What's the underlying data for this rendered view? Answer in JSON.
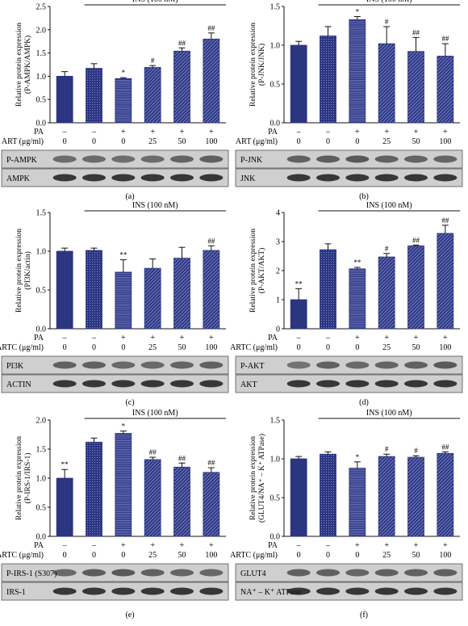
{
  "cond_labels": {
    "pa": "PA",
    "dash": "–",
    "plus": "+"
  },
  "bar_color": "#2b3580",
  "patterns": [
    "solid",
    "cross",
    "hstripe",
    "diag",
    "diag",
    "diag"
  ],
  "chart_data": [
    {
      "panel": "(a)",
      "type": "bar",
      "ylabel": "Relative protein expression\n(P-AMPK/AMPK)",
      "ylim": [
        0,
        2.5
      ],
      "yticks": [
        "0.0",
        "0.5",
        "1.0",
        "1.5",
        "2.0",
        "2.5"
      ],
      "ytick_vals": [
        0,
        0.5,
        1,
        1.5,
        2,
        2.5
      ],
      "ins_label": "INS (100 nM)",
      "ins_from": 1,
      "treatment_label": "ART (μg/ml)",
      "pa": [
        "–",
        "–",
        "+",
        "+",
        "+",
        "+"
      ],
      "doses": [
        "0",
        "0",
        "0",
        "25",
        "50",
        "100"
      ],
      "values": [
        1.0,
        1.17,
        0.95,
        1.19,
        1.54,
        1.8
      ],
      "errors": [
        0.1,
        0.1,
        0.02,
        0.04,
        0.07,
        0.13
      ],
      "sig": [
        "",
        "",
        "*",
        "#",
        "##",
        "##"
      ],
      "blots": [
        "P-AMPK",
        "AMPK"
      ]
    },
    {
      "panel": "(b)",
      "type": "bar",
      "ylabel": "Relative protein expression\n(P-JNK/JNK)",
      "ylim": [
        0,
        1.5
      ],
      "yticks": [
        "0.0",
        "0.5",
        "1.0",
        "1.5"
      ],
      "ytick_vals": [
        0,
        0.5,
        1,
        1.5
      ],
      "ins_label": "INS (100 nM)",
      "ins_from": 1,
      "treatment_label": "ART (μg/ml)",
      "pa": [
        "–",
        "–",
        "+",
        "+",
        "+",
        "+"
      ],
      "doses": [
        "0",
        "0",
        "0",
        "25",
        "50",
        "100"
      ],
      "values": [
        1.0,
        1.12,
        1.33,
        1.02,
        0.92,
        0.86
      ],
      "errors": [
        0.05,
        0.12,
        0.04,
        0.22,
        0.18,
        0.16
      ],
      "sig": [
        "",
        "",
        "*",
        "#",
        "##",
        "##"
      ],
      "blots": [
        "P-JNK",
        "JNK"
      ]
    },
    {
      "panel": "(c)",
      "type": "bar",
      "ylabel": "Relative protein expression\n(PI3K/actin)",
      "ylim": [
        0,
        1.5
      ],
      "yticks": [
        "0.0",
        "0.5",
        "1.0",
        "1.5"
      ],
      "ytick_vals": [
        0,
        0.5,
        1,
        1.5
      ],
      "ins_label": "INS (100 nM)",
      "ins_from": 1,
      "treatment_label": "ARTC (μg/ml)",
      "pa": [
        "–",
        "–",
        "+",
        "+",
        "+",
        "+"
      ],
      "doses": [
        "0",
        "0",
        "0",
        "25",
        "50",
        "100"
      ],
      "values": [
        1.0,
        1.01,
        0.73,
        0.78,
        0.91,
        1.01
      ],
      "errors": [
        0.04,
        0.03,
        0.16,
        0.12,
        0.14,
        0.06
      ],
      "sig": [
        "",
        "",
        "**",
        "",
        "",
        "##"
      ],
      "blots": [
        "PI3K",
        "ACTIN"
      ]
    },
    {
      "panel": "(d)",
      "type": "bar",
      "ylabel": "Relative protein expression\n(P-AKT/AKT)",
      "ylim": [
        0,
        4
      ],
      "yticks": [
        "0",
        "1",
        "2",
        "3",
        "4"
      ],
      "ytick_vals": [
        0,
        1,
        2,
        3,
        4
      ],
      "ins_label": "INS (100 nM)",
      "ins_from": 1,
      "treatment_label": "ARTC (μg/ml)",
      "pa": [
        "–",
        "–",
        "+",
        "+",
        "+",
        "+"
      ],
      "doses": [
        "0",
        "0",
        "0",
        "25",
        "50",
        "100"
      ],
      "values": [
        1.0,
        2.72,
        2.06,
        2.47,
        2.85,
        3.28
      ],
      "errors": [
        0.38,
        0.2,
        0.05,
        0.12,
        0.03,
        0.28
      ],
      "sig": [
        "**",
        "",
        "**",
        "#",
        "##",
        "##"
      ],
      "blots": [
        "P-AKT",
        "AKT"
      ]
    },
    {
      "panel": "(e)",
      "type": "bar",
      "ylabel": "Relative protein expression\n(P-IRS-1/IRS-1)",
      "ylim": [
        0,
        2.0
      ],
      "yticks": [
        "0.0",
        "0.5",
        "1.0",
        "1.5",
        "2.0"
      ],
      "ytick_vals": [
        0,
        0.5,
        1,
        1.5,
        2
      ],
      "ins_label": "INS (100 nM)",
      "ins_from": 1,
      "treatment_label": "ARTC (μg/ml)",
      "pa": [
        "–",
        "–",
        "+",
        "+",
        "+",
        "+"
      ],
      "doses": [
        "0",
        "0",
        "0",
        "25",
        "50",
        "100"
      ],
      "values": [
        1.0,
        1.62,
        1.77,
        1.32,
        1.19,
        1.1
      ],
      "errors": [
        0.15,
        0.07,
        0.04,
        0.04,
        0.07,
        0.08
      ],
      "sig": [
        "**",
        "",
        "*",
        "##",
        "##",
        "##"
      ],
      "blots": [
        "P-IRS-1 (S307)",
        "IRS-1"
      ]
    },
    {
      "panel": "(f)",
      "type": "bar",
      "ylabel": "Relative protein expression\n(GLUT4/NA⁺ – K⁺ ATPase)",
      "ylim": [
        0,
        1.5
      ],
      "yticks": [
        "0.0",
        "0.5",
        "1.0",
        "1.5"
      ],
      "ytick_vals": [
        0,
        0.5,
        1,
        1.5
      ],
      "ins_label": "INS (100 nM)",
      "ins_from": 1,
      "treatment_label": "ARTC (μg/ml)",
      "pa": [
        "–",
        "–",
        "+",
        "+",
        "+",
        "+"
      ],
      "doses": [
        "0",
        "0",
        "0",
        "25",
        "50",
        "100"
      ],
      "values": [
        1.0,
        1.06,
        0.88,
        1.03,
        1.02,
        1.07
      ],
      "errors": [
        0.03,
        0.03,
        0.08,
        0.03,
        0.02,
        0.02
      ],
      "sig": [
        "",
        "",
        "*",
        "#",
        "#",
        "##"
      ],
      "blots": [
        "GLUT4",
        "NA⁺ – K⁺ ATPase"
      ]
    }
  ]
}
